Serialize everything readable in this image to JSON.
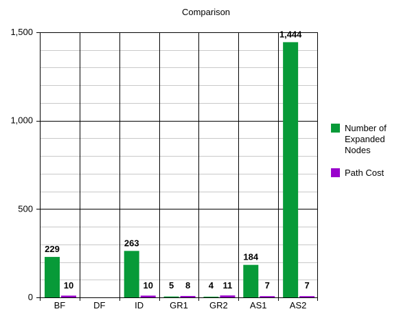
{
  "chart_data": {
    "type": "bar",
    "title": "Comparison",
    "xlabel": "",
    "ylabel": "",
    "categories": [
      "BF",
      "DF",
      "ID",
      "GR1",
      "GR2",
      "AS1",
      "AS2"
    ],
    "ylim": [
      0,
      1500
    ],
    "yticks": [
      0,
      500,
      1000,
      1500
    ],
    "ytick_labels": [
      "0",
      "500",
      "1,000",
      "1,500"
    ],
    "minor_step": 100,
    "grid": true,
    "legend_position": "right",
    "series": [
      {
        "name": "Number of Expanded Nodes",
        "legend_lines": [
          "Number of",
          "Expanded",
          "Nodes"
        ],
        "color": "#079a38",
        "values": [
          229,
          null,
          263,
          5,
          4,
          184,
          1444
        ],
        "labels": [
          "229",
          "",
          "263",
          "5",
          "4",
          "184",
          "1,444"
        ]
      },
      {
        "name": "Path Cost",
        "legend_lines": [
          "Path Cost"
        ],
        "color": "#9900cc",
        "values": [
          10,
          null,
          10,
          8,
          11,
          7,
          7
        ],
        "labels": [
          "10",
          "",
          "10",
          "8",
          "11",
          "7",
          "7"
        ]
      }
    ]
  }
}
